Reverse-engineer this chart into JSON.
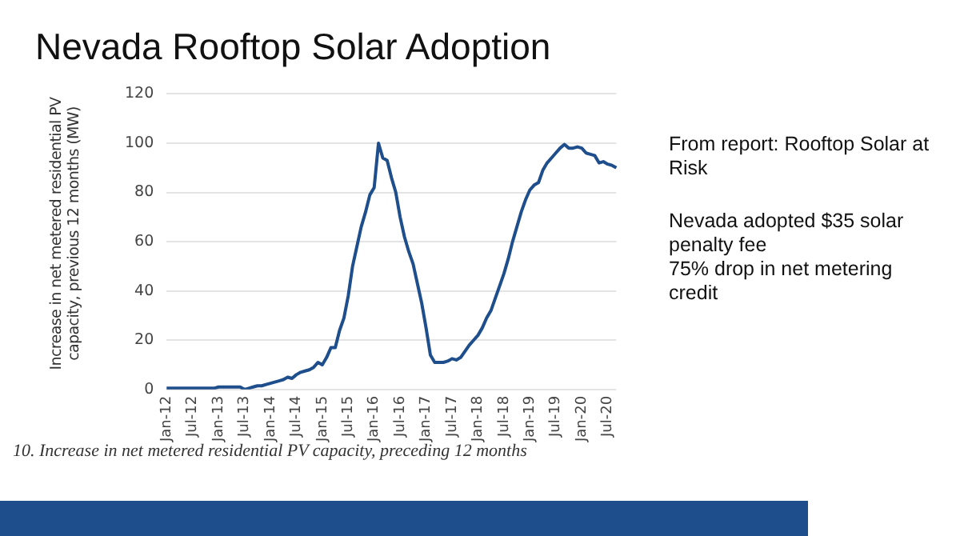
{
  "chart_data": {
    "type": "line",
    "title": "Nevada Rooftop Solar Adoption",
    "ylabel": "Increase in net metered residential PV capacity, previous 12 months (MW)",
    "categories": [
      "Jan-12",
      null,
      null,
      null,
      null,
      null,
      "Jul-12",
      null,
      null,
      null,
      null,
      null,
      "Jan-13",
      null,
      null,
      null,
      null,
      null,
      "Jul-13",
      null,
      null,
      null,
      null,
      null,
      "Jan-14",
      null,
      null,
      null,
      null,
      null,
      "Jul-14",
      null,
      null,
      null,
      null,
      null,
      "Jan-15",
      null,
      null,
      null,
      null,
      null,
      "Jul-15",
      null,
      null,
      null,
      null,
      null,
      "Jan-16",
      null,
      null,
      null,
      null,
      null,
      "Jul-16",
      null,
      null,
      null,
      null,
      null,
      "Jan-17",
      null,
      null,
      null,
      null,
      null,
      "Jul-17",
      null,
      null,
      null,
      null,
      null,
      "Jan-18",
      null,
      null,
      null,
      null,
      null,
      "Jul-18",
      null,
      null,
      null,
      null,
      null,
      "Jan-19",
      null,
      null,
      null,
      null,
      null,
      "Jul-19",
      null,
      null,
      null,
      null,
      null,
      "Jan-20",
      null,
      null,
      null,
      null,
      null,
      "Jul-20",
      null,
      null
    ],
    "series": [
      {
        "color": "#1f4e8c",
        "values": [
          0.5,
          0.5,
          0.5,
          0.5,
          0.5,
          0.5,
          0.5,
          0.5,
          0.5,
          0.5,
          0.5,
          0.5,
          1,
          1,
          1,
          1,
          1,
          1,
          0,
          0.5,
          1,
          1.5,
          1.5,
          2,
          2.5,
          3,
          3.5,
          4,
          5,
          4.5,
          6,
          7,
          7.5,
          8,
          9,
          11,
          10,
          13,
          17,
          17,
          24,
          29,
          38,
          50,
          58,
          66,
          72,
          79,
          82,
          100,
          94,
          93,
          86,
          80,
          70,
          62,
          56,
          51,
          43,
          35,
          25,
          14,
          11,
          11,
          11,
          11.5,
          12.5,
          12,
          13,
          15.5,
          18,
          20,
          22,
          25,
          29,
          32,
          37,
          42,
          47,
          53,
          60,
          66,
          72,
          77,
          81,
          83,
          84,
          89,
          92,
          94,
          96,
          98,
          99.5,
          98,
          98,
          98.5,
          98,
          96,
          95.5,
          95,
          92,
          92.5,
          91.5,
          91,
          90
        ]
      }
    ],
    "ylim": [
      0,
      120
    ],
    "yticks": [
      0,
      20,
      40,
      60,
      80,
      100,
      120
    ],
    "grid": "y",
    "legend": false,
    "marker": "none",
    "line_style": "solid",
    "annotations": [
      "From report: Rooftop Solar at Risk",
      "Nevada adopted $35 solar penalty fee\n75% drop in net metering credit",
      "10. Increase in net metered residential PV capacity, preceding 12 months"
    ]
  }
}
